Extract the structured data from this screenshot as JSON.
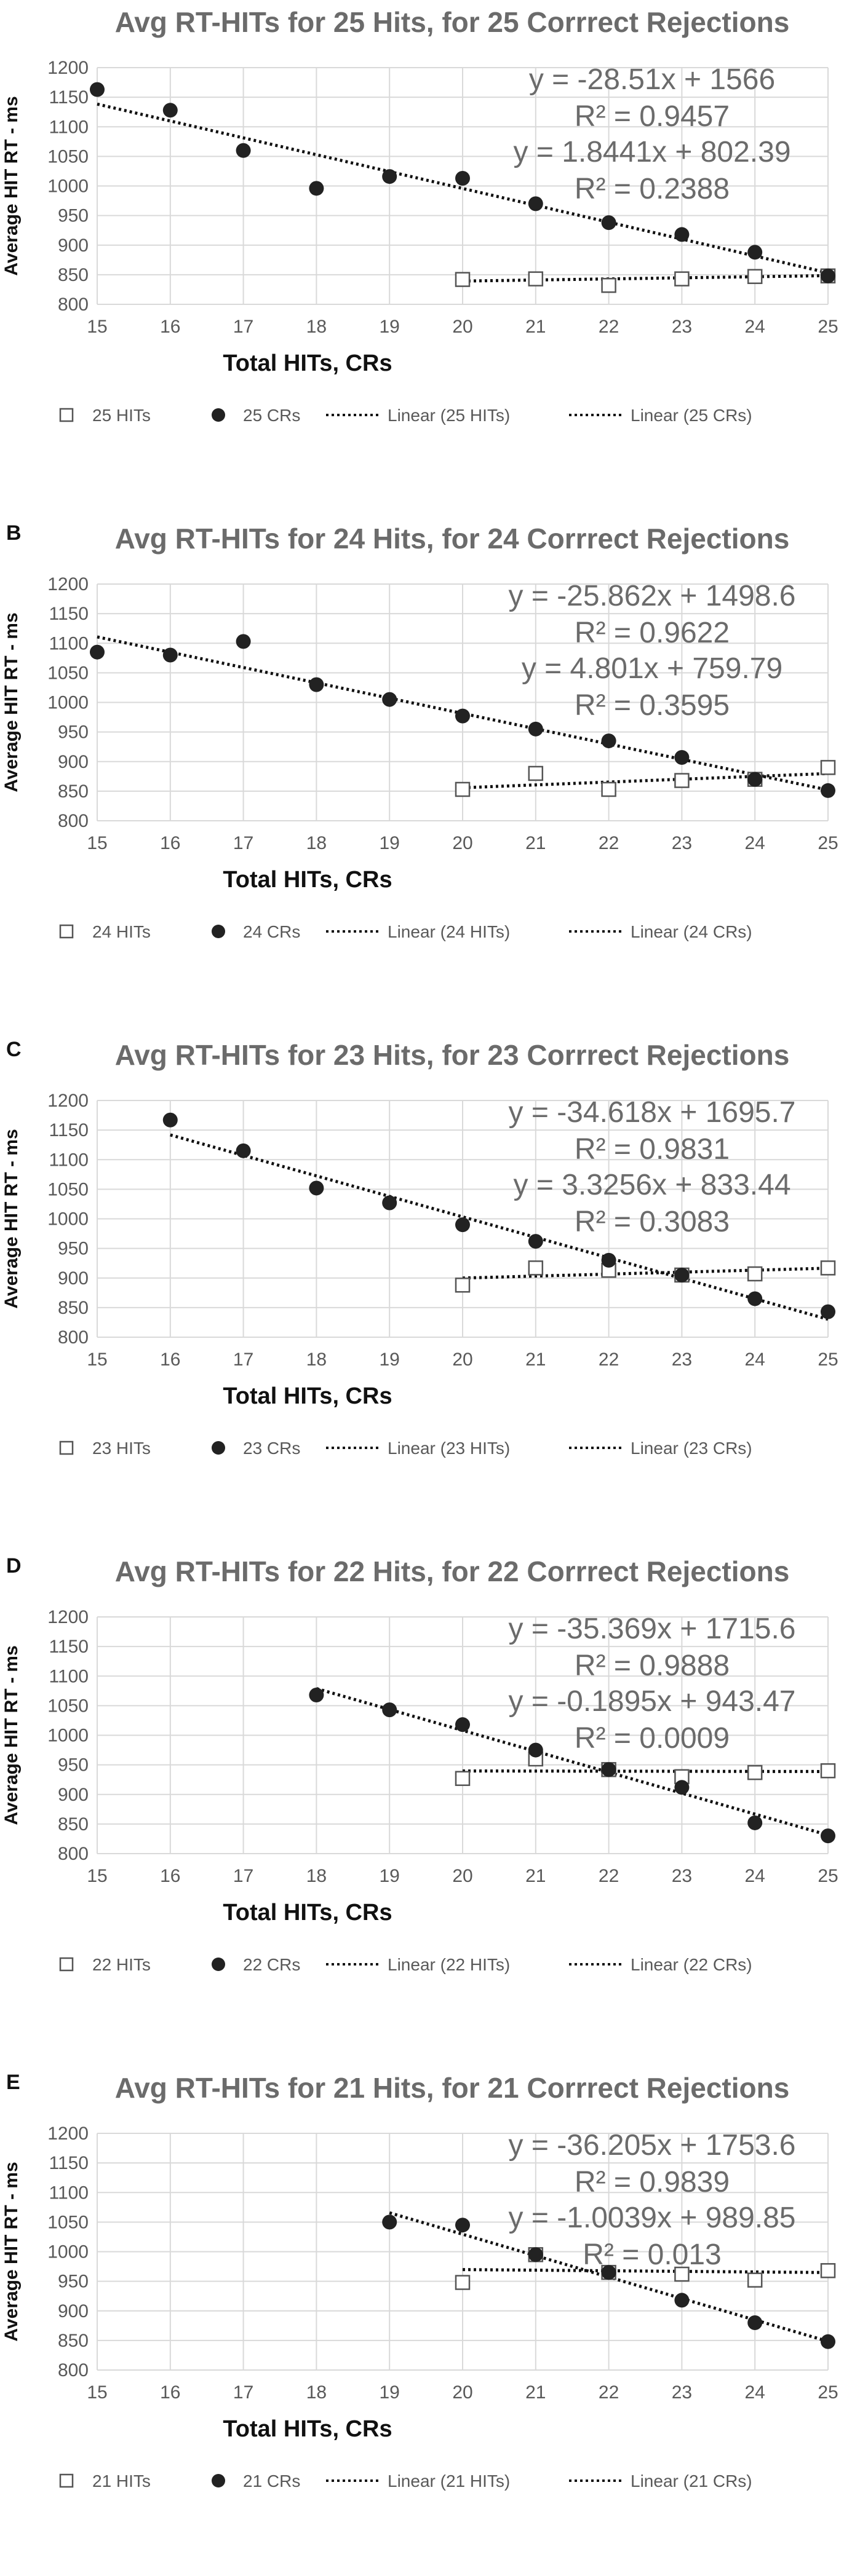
{
  "chart_data": [
    {
      "type": "scatter",
      "panel_label": "",
      "title": "Avg RT-HITs for 25 Hits, for 25 Corrrect Rejections",
      "xlabel": "Total HITs, CRs",
      "ylabel": "Average HIT RT - ms",
      "xlim": [
        15,
        25
      ],
      "ylim": [
        800,
        1200
      ],
      "xticks": [
        "15",
        "16",
        "17",
        "18",
        "19",
        "20",
        "21",
        "22",
        "23",
        "24",
        "25"
      ],
      "yticks": [
        "800",
        "850",
        "900",
        "950",
        "1000",
        "1050",
        "1100",
        "1150",
        "1200"
      ],
      "grid": true,
      "legend_position": "bottom",
      "series": [
        {
          "name": "25 HITs",
          "marker": "open-square",
          "x": [
            20,
            21,
            22,
            23,
            24,
            25
          ],
          "y": [
            842,
            843,
            832,
            843,
            847,
            848
          ]
        },
        {
          "name": "25 CRs",
          "marker": "filled-circle",
          "x": [
            15,
            16,
            17,
            18,
            19,
            20,
            21,
            22,
            23,
            24,
            25
          ],
          "y": [
            1163,
            1128,
            1060,
            996,
            1016,
            1013,
            970,
            938,
            918,
            888,
            848
          ]
        }
      ],
      "trendlines": [
        {
          "name": "Linear (25 HITs)",
          "slope": 1.8441,
          "intercept": 802.39,
          "x_range": [
            20,
            25
          ],
          "equation": "y = 1.8441x + 802.39",
          "r2": "R² = 0.2388"
        },
        {
          "name": "Linear (25 CRs)",
          "slope": -28.51,
          "intercept": 1566,
          "x_range": [
            15,
            25
          ],
          "equation": "y = -28.51x + 1566",
          "r2": "R² = 0.9457"
        }
      ],
      "legend": [
        "25 HITs",
        "25 CRs",
        "Linear (25 HITs)",
        "Linear (25 CRs)"
      ]
    },
    {
      "type": "scatter",
      "panel_label": "B",
      "title": "Avg RT-HITs for 24 Hits, for 24 Corrrect Rejections",
      "xlabel": "Total HITs, CRs",
      "ylabel": "Average HIT RT - ms",
      "xlim": [
        15,
        25
      ],
      "ylim": [
        800,
        1200
      ],
      "xticks": [
        "15",
        "16",
        "17",
        "18",
        "19",
        "20",
        "21",
        "22",
        "23",
        "24",
        "25"
      ],
      "yticks": [
        "800",
        "850",
        "900",
        "950",
        "1000",
        "1050",
        "1100",
        "1150",
        "1200"
      ],
      "grid": true,
      "legend_position": "bottom",
      "series": [
        {
          "name": "24 HITs",
          "marker": "open-square",
          "x": [
            20,
            21,
            22,
            23,
            24,
            25
          ],
          "y": [
            853,
            880,
            853,
            868,
            870,
            890
          ]
        },
        {
          "name": "24 CRs",
          "marker": "filled-circle",
          "x": [
            15,
            16,
            17,
            18,
            19,
            20,
            21,
            22,
            23,
            24,
            25
          ],
          "y": [
            1085,
            1080,
            1103,
            1030,
            1005,
            977,
            955,
            935,
            907,
            870,
            851
          ]
        }
      ],
      "trendlines": [
        {
          "name": "Linear (24 HITs)",
          "slope": 4.801,
          "intercept": 759.79,
          "x_range": [
            20,
            25
          ],
          "equation": "y = 4.801x + 759.79",
          "r2": "R² = 0.3595"
        },
        {
          "name": "Linear (24 CRs)",
          "slope": -25.862,
          "intercept": 1498.6,
          "x_range": [
            15,
            25
          ],
          "equation": "y = -25.862x + 1498.6",
          "r2": "R² = 0.9622"
        }
      ],
      "legend": [
        "24 HITs",
        "24 CRs",
        "Linear (24 HITs)",
        "Linear (24 CRs)"
      ]
    },
    {
      "type": "scatter",
      "panel_label": "C",
      "title": "Avg RT-HITs for 23 Hits, for 23 Corrrect Rejections",
      "xlabel": "Total HITs, CRs",
      "ylabel": "Average HIT RT - ms",
      "xlim": [
        15,
        25
      ],
      "ylim": [
        800,
        1200
      ],
      "xticks": [
        "15",
        "16",
        "17",
        "18",
        "19",
        "20",
        "21",
        "22",
        "23",
        "24",
        "25"
      ],
      "yticks": [
        "800",
        "850",
        "900",
        "950",
        "1000",
        "1050",
        "1100",
        "1150",
        "1200"
      ],
      "grid": true,
      "legend_position": "bottom",
      "series": [
        {
          "name": "23 HITs",
          "marker": "open-square",
          "x": [
            20,
            21,
            22,
            23,
            24,
            25
          ],
          "y": [
            888,
            917,
            913,
            905,
            907,
            917
          ]
        },
        {
          "name": "23 CRs",
          "marker": "filled-circle",
          "x": [
            16,
            17,
            18,
            19,
            20,
            21,
            22,
            23,
            24,
            25
          ],
          "y": [
            1167,
            1115,
            1052,
            1027,
            990,
            962,
            930,
            905,
            865,
            843
          ]
        }
      ],
      "trendlines": [
        {
          "name": "Linear (23 HITs)",
          "slope": 3.3256,
          "intercept": 833.44,
          "x_range": [
            20,
            25
          ],
          "equation": "y = 3.3256x + 833.44",
          "r2": "R² = 0.3083"
        },
        {
          "name": "Linear (23 CRs)",
          "slope": -34.618,
          "intercept": 1695.7,
          "x_range": [
            16,
            25
          ],
          "equation": "y = -34.618x + 1695.7",
          "r2": "R² = 0.9831"
        }
      ],
      "legend": [
        "23 HITs",
        "23 CRs",
        "Linear (23 HITs)",
        "Linear (23 CRs)"
      ]
    },
    {
      "type": "scatter",
      "panel_label": "D",
      "title": "Avg RT-HITs for 22 Hits, for 22 Corrrect Rejections",
      "xlabel": "Total HITs, CRs",
      "ylabel": "Average HIT RT - ms",
      "xlim": [
        15,
        25
      ],
      "ylim": [
        800,
        1200
      ],
      "xticks": [
        "15",
        "16",
        "17",
        "18",
        "19",
        "20",
        "21",
        "22",
        "23",
        "24",
        "25"
      ],
      "yticks": [
        "800",
        "850",
        "900",
        "950",
        "1000",
        "1050",
        "1100",
        "1150",
        "1200"
      ],
      "grid": true,
      "legend_position": "bottom",
      "series": [
        {
          "name": "22 HITs",
          "marker": "open-square",
          "x": [
            20,
            21,
            22,
            23,
            24,
            25
          ],
          "y": [
            927,
            960,
            942,
            930,
            937,
            940
          ]
        },
        {
          "name": "22 CRs",
          "marker": "filled-circle",
          "x": [
            18,
            19,
            20,
            21,
            22,
            23,
            24,
            25
          ],
          "y": [
            1068,
            1043,
            1018,
            975,
            942,
            912,
            852,
            830
          ]
        }
      ],
      "trendlines": [
        {
          "name": "Linear (22 HITs)",
          "slope": -0.1895,
          "intercept": 943.47,
          "x_range": [
            20,
            25
          ],
          "equation": "y = -0.1895x + 943.47",
          "r2": "R² = 0.0009"
        },
        {
          "name": "Linear (22 CRs)",
          "slope": -35.369,
          "intercept": 1715.6,
          "x_range": [
            18,
            25
          ],
          "equation": "y = -35.369x + 1715.6",
          "r2": "R² = 0.9888"
        }
      ],
      "legend": [
        "22 HITs",
        "22 CRs",
        "Linear (22 HITs)",
        "Linear (22 CRs)"
      ]
    },
    {
      "type": "scatter",
      "panel_label": "E",
      "title": "Avg RT-HITs for 21 Hits, for 21 Corrrect Rejections",
      "xlabel": "Total HITs, CRs",
      "ylabel": "Average HIT RT - ms",
      "xlim": [
        15,
        25
      ],
      "ylim": [
        800,
        1200
      ],
      "xticks": [
        "15",
        "16",
        "17",
        "18",
        "19",
        "20",
        "21",
        "22",
        "23",
        "24",
        "25"
      ],
      "yticks": [
        "800",
        "850",
        "900",
        "950",
        "1000",
        "1050",
        "1100",
        "1150",
        "1200"
      ],
      "grid": true,
      "legend_position": "bottom",
      "series": [
        {
          "name": "21 HITs",
          "marker": "open-square",
          "x": [
            20,
            21,
            22,
            23,
            24,
            25
          ],
          "y": [
            948,
            995,
            965,
            962,
            952,
            968
          ]
        },
        {
          "name": "21 CRs",
          "marker": "filled-circle",
          "x": [
            19,
            20,
            21,
            22,
            23,
            24,
            25
          ],
          "y": [
            1050,
            1045,
            995,
            965,
            918,
            880,
            848
          ]
        }
      ],
      "trendlines": [
        {
          "name": "Linear (21 HITs)",
          "slope": -1.0039,
          "intercept": 989.85,
          "x_range": [
            20,
            25
          ],
          "equation": "y = -1.0039x + 989.85",
          "r2": "R² = 0.013"
        },
        {
          "name": "Linear (21 CRs)",
          "slope": -36.205,
          "intercept": 1753.6,
          "x_range": [
            19,
            25
          ],
          "equation": "y = -36.205x + 1753.6",
          "r2": "R² = 0.9839"
        }
      ],
      "legend": [
        "21 HITs",
        "21 CRs",
        "Linear (21 HITs)",
        "Linear (21 CRs)"
      ]
    }
  ]
}
